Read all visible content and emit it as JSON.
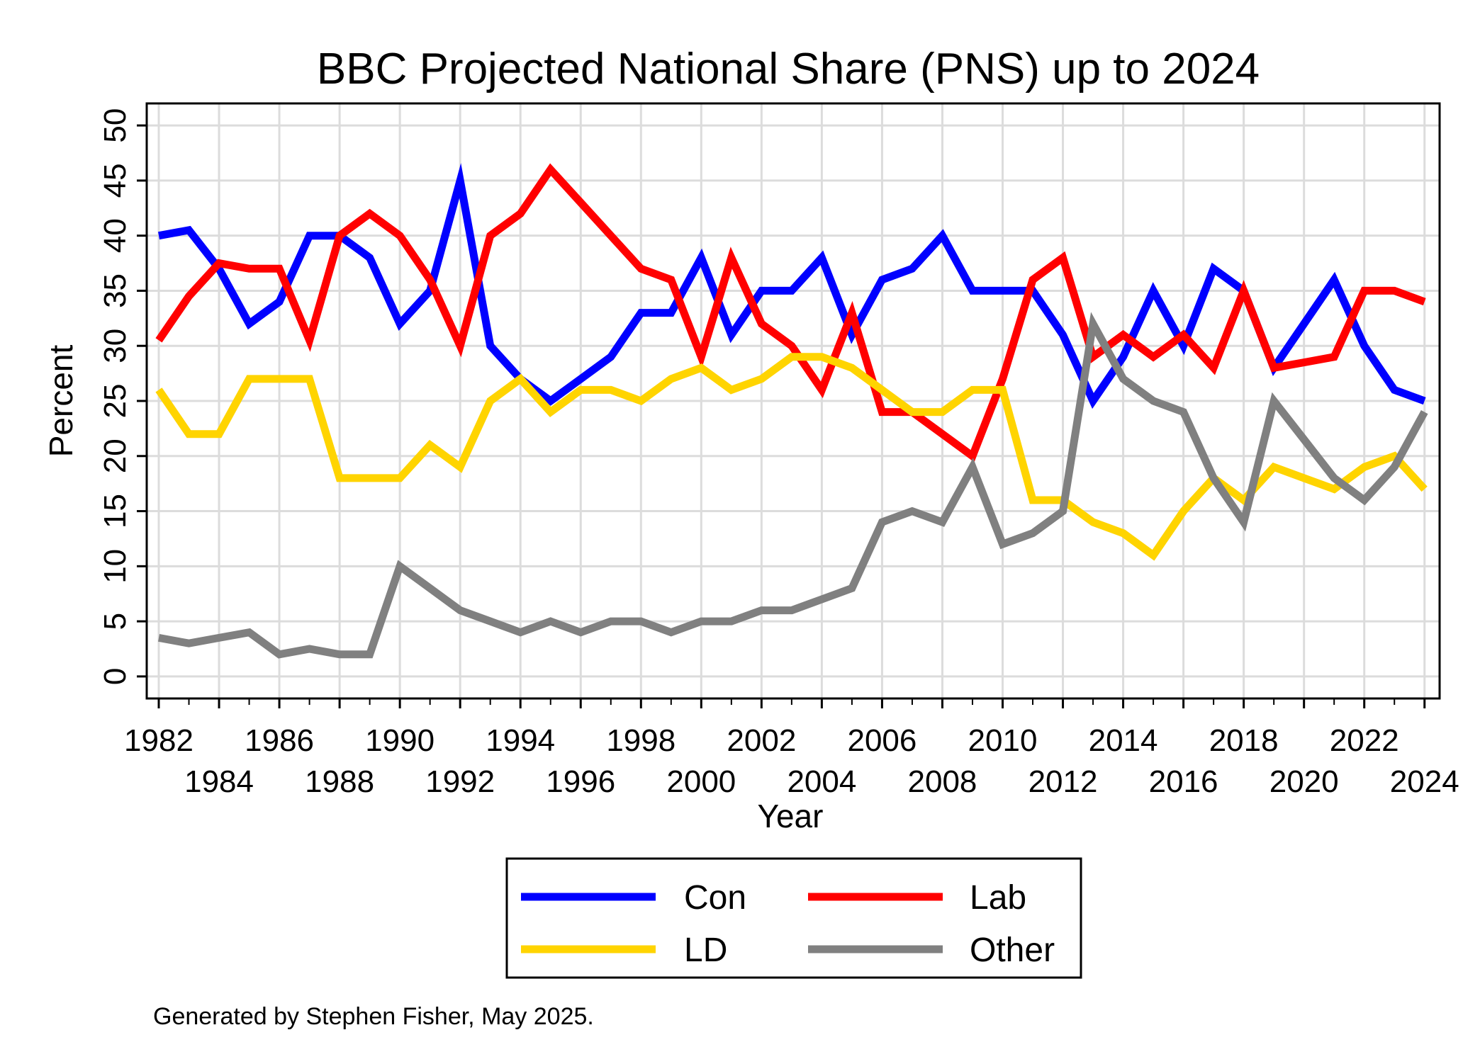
{
  "chart_data": {
    "type": "line",
    "title": "BBC Projected National Share (PNS) up to 2024",
    "xlabel": "Year",
    "ylabel": "Percent",
    "xlim": [
      1981.6,
      2024.5
    ],
    "ylim": [
      -2,
      52
    ],
    "x_ticks": [
      1982,
      1984,
      1986,
      1988,
      1990,
      1992,
      1994,
      1996,
      1998,
      2000,
      2002,
      2004,
      2006,
      2008,
      2010,
      2012,
      2014,
      2016,
      2018,
      2020,
      2022,
      2024
    ],
    "x_tick_labels": [
      "1982",
      "1984",
      "1986",
      "1988",
      "1990",
      "1992",
      "1994",
      "1996",
      "1998",
      "2000",
      "2002",
      "2004",
      "2006",
      "2008",
      "2010",
      "2012",
      "2014",
      "2016",
      "2018",
      "2020",
      "2022",
      "2024"
    ],
    "y_ticks": [
      0,
      5,
      10,
      15,
      20,
      25,
      30,
      35,
      40,
      45,
      50
    ],
    "y_tick_labels": [
      "0",
      "5",
      "10",
      "15",
      "20",
      "25",
      "30",
      "35",
      "40",
      "45",
      "50"
    ],
    "grid": true,
    "legend_position": "bottom",
    "series": [
      {
        "name": "Con",
        "color": "#0000ff",
        "points": [
          [
            1982,
            40
          ],
          [
            1983,
            40.5
          ],
          [
            1984,
            37
          ],
          [
            1985,
            32
          ],
          [
            1986,
            34
          ],
          [
            1987,
            40
          ],
          [
            1988,
            40
          ],
          [
            1989,
            38
          ],
          [
            1990,
            32
          ],
          [
            1991,
            35
          ],
          [
            1992,
            45
          ],
          [
            1993,
            30
          ],
          [
            1994,
            27
          ],
          [
            1995,
            25
          ],
          [
            1996,
            27
          ],
          [
            1997,
            29
          ],
          [
            1998,
            33
          ],
          [
            1999,
            33
          ],
          [
            2000,
            38
          ],
          [
            2001,
            31
          ],
          [
            2002,
            35
          ],
          [
            2003,
            35
          ],
          [
            2004,
            38
          ],
          [
            2005,
            31
          ],
          [
            2006,
            36
          ],
          [
            2007,
            37
          ],
          [
            2008,
            40
          ],
          [
            2009,
            35
          ],
          [
            2010,
            35
          ],
          [
            2011,
            35
          ],
          [
            2012,
            31
          ],
          [
            2013,
            25
          ],
          [
            2014,
            29
          ],
          [
            2015,
            35
          ],
          [
            2016,
            30
          ],
          [
            2017,
            37
          ],
          [
            2018,
            35
          ],
          [
            2019,
            28
          ],
          [
            2020,
            32
          ],
          [
            2021,
            36
          ],
          [
            2022,
            30
          ],
          [
            2023,
            26
          ],
          [
            2024,
            25
          ]
        ]
      },
      {
        "name": "Lab",
        "color": "#ff0000",
        "points": [
          [
            1982,
            30.5
          ],
          [
            1983,
            34.5
          ],
          [
            1984,
            37.5
          ],
          [
            1985,
            37
          ],
          [
            1986,
            37
          ],
          [
            1987,
            30.5
          ],
          [
            1988,
            40
          ],
          [
            1989,
            42
          ],
          [
            1990,
            40
          ],
          [
            1991,
            36
          ],
          [
            1992,
            30
          ],
          [
            1993,
            40
          ],
          [
            1994,
            42
          ],
          [
            1995,
            46
          ],
          [
            1996,
            43
          ],
          [
            1997,
            40
          ],
          [
            1998,
            37
          ],
          [
            1999,
            36
          ],
          [
            2000,
            29
          ],
          [
            2001,
            38
          ],
          [
            2002,
            32
          ],
          [
            2003,
            30
          ],
          [
            2004,
            26
          ],
          [
            2005,
            33
          ],
          [
            2006,
            24
          ],
          [
            2007,
            24
          ],
          [
            2008,
            22
          ],
          [
            2009,
            20
          ],
          [
            2010,
            27
          ],
          [
            2011,
            36
          ],
          [
            2012,
            38
          ],
          [
            2013,
            29
          ],
          [
            2014,
            31
          ],
          [
            2015,
            29
          ],
          [
            2016,
            31
          ],
          [
            2017,
            28
          ],
          [
            2018,
            35
          ],
          [
            2019,
            28
          ],
          [
            2020,
            28.5
          ],
          [
            2021,
            29
          ],
          [
            2022,
            35
          ],
          [
            2023,
            35
          ],
          [
            2024,
            34
          ]
        ]
      },
      {
        "name": "LD",
        "color": "#ffd400",
        "points": [
          [
            1982,
            26
          ],
          [
            1983,
            22
          ],
          [
            1984,
            22
          ],
          [
            1985,
            27
          ],
          [
            1986,
            27
          ],
          [
            1987,
            27
          ],
          [
            1988,
            18
          ],
          [
            1989,
            18
          ],
          [
            1990,
            18
          ],
          [
            1991,
            21
          ],
          [
            1992,
            19
          ],
          [
            1993,
            25
          ],
          [
            1994,
            27
          ],
          [
            1995,
            24
          ],
          [
            1996,
            26
          ],
          [
            1997,
            26
          ],
          [
            1998,
            25
          ],
          [
            1999,
            27
          ],
          [
            2000,
            28
          ],
          [
            2001,
            26
          ],
          [
            2002,
            27
          ],
          [
            2003,
            29
          ],
          [
            2004,
            29
          ],
          [
            2005,
            28
          ],
          [
            2006,
            26
          ],
          [
            2007,
            24
          ],
          [
            2008,
            24
          ],
          [
            2009,
            26
          ],
          [
            2010,
            26
          ],
          [
            2011,
            16
          ],
          [
            2012,
            16
          ],
          [
            2013,
            14
          ],
          [
            2014,
            13
          ],
          [
            2015,
            11
          ],
          [
            2016,
            15
          ],
          [
            2017,
            18
          ],
          [
            2018,
            16
          ],
          [
            2019,
            19
          ],
          [
            2020,
            18
          ],
          [
            2021,
            17
          ],
          [
            2022,
            19
          ],
          [
            2023,
            20
          ],
          [
            2024,
            17
          ]
        ]
      },
      {
        "name": "Other",
        "color": "#808080",
        "points": [
          [
            1982,
            3.5
          ],
          [
            1983,
            3
          ],
          [
            1984,
            3.5
          ],
          [
            1985,
            4
          ],
          [
            1986,
            2
          ],
          [
            1987,
            2.5
          ],
          [
            1988,
            2
          ],
          [
            1989,
            2
          ],
          [
            1990,
            10
          ],
          [
            1991,
            8
          ],
          [
            1992,
            6
          ],
          [
            1993,
            5
          ],
          [
            1994,
            4
          ],
          [
            1995,
            5
          ],
          [
            1996,
            4
          ],
          [
            1997,
            5
          ],
          [
            1998,
            5
          ],
          [
            1999,
            4
          ],
          [
            2000,
            5
          ],
          [
            2001,
            5
          ],
          [
            2002,
            6
          ],
          [
            2003,
            6
          ],
          [
            2004,
            7
          ],
          [
            2005,
            8
          ],
          [
            2006,
            14
          ],
          [
            2007,
            15
          ],
          [
            2008,
            14
          ],
          [
            2009,
            19
          ],
          [
            2010,
            12
          ],
          [
            2011,
            13
          ],
          [
            2012,
            15
          ],
          [
            2013,
            32
          ],
          [
            2014,
            27
          ],
          [
            2015,
            25
          ],
          [
            2016,
            24
          ],
          [
            2017,
            18
          ],
          [
            2018,
            14
          ],
          [
            2019,
            25
          ],
          [
            2020,
            21.5
          ],
          [
            2021,
            18
          ],
          [
            2022,
            16
          ],
          [
            2023,
            19
          ],
          [
            2024,
            24
          ]
        ]
      }
    ]
  },
  "footer": "Generated by Stephen Fisher, May 2025."
}
